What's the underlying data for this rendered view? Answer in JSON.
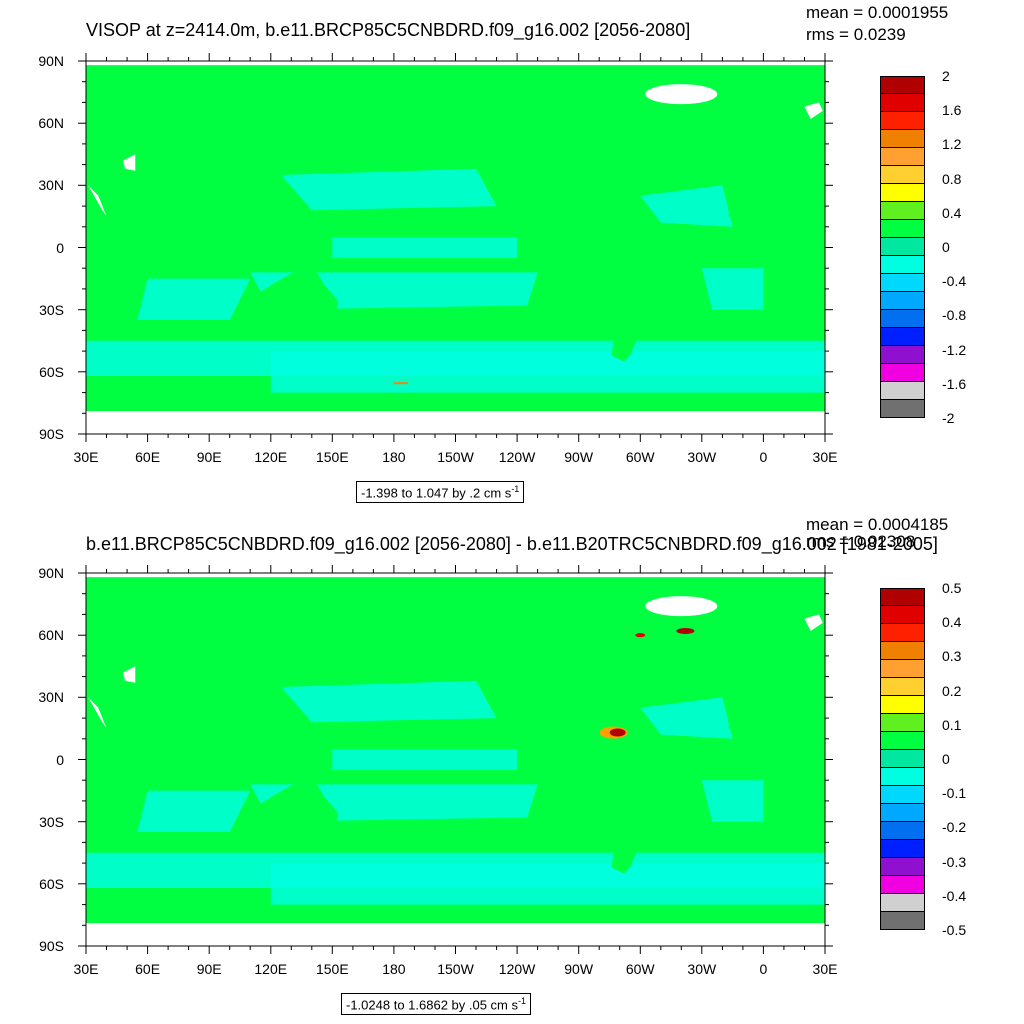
{
  "chart_data": [
    {
      "type": "heatmap",
      "title": "VISOP at z=2414.0m, b.e11.BRCP85C5CNBDRD.f09_g16.002 [2056-2080]",
      "stats": {
        "mean": "mean = 0.0001955",
        "rms": "rms = 0.0239"
      },
      "x_ticks": [
        "30E",
        "60E",
        "90E",
        "120E",
        "150E",
        "180",
        "150W",
        "120W",
        "90W",
        "60W",
        "30W",
        "0",
        "30E"
      ],
      "y_ticks": [
        "90N",
        "60N",
        "30N",
        "0",
        "30S",
        "60S",
        "90S"
      ],
      "range_text": "-1.398 to 1.047 by .2 cm s",
      "range_unit_exp": "-1",
      "colorbar_labels": [
        "2",
        "1.6",
        "1.2",
        "0.8",
        "0.4",
        "0",
        "-0.4",
        "-0.8",
        "-1.2",
        "-1.6",
        "-2"
      ],
      "colorbar_levels": [
        2,
        1.6,
        1.2,
        0.8,
        0.4,
        0,
        -0.4,
        -0.8,
        -1.2,
        -1.6,
        -2
      ],
      "colorbar_colors": [
        "#b00000",
        "#e00000",
        "#ff2000",
        "#f08000",
        "#ffa030",
        "#ffd030",
        "#ffff00",
        "#60f020",
        "#00ff40",
        "#00e8a0",
        "#00ffe0",
        "#00d8ff",
        "#00a8ff",
        "#0070f0",
        "#0020ff",
        "#9010d0",
        "#f000e0",
        "#d0d0d0",
        "#707070"
      ],
      "field": {
        "min": -1.398,
        "max": 1.047,
        "interval": 0.2,
        "units": "cm s-1",
        "dominant_color": "#00ff40",
        "secondary_color": "#00ffe0"
      }
    },
    {
      "type": "heatmap",
      "title": "b.e11.BRCP85C5CNBDRD.f09_g16.002 [2056-2080] - b.e11.B20TRC5CNBDRD.f09_g16.002 [1981-2005]",
      "stats": {
        "mean": "mean = 0.0004185",
        "rms": "rms = 0.02308"
      },
      "x_ticks": [
        "30E",
        "60E",
        "90E",
        "120E",
        "150E",
        "180",
        "150W",
        "120W",
        "90W",
        "60W",
        "30W",
        "0",
        "30E"
      ],
      "y_ticks": [
        "90N",
        "60N",
        "30N",
        "0",
        "30S",
        "60S",
        "90S"
      ],
      "range_text": "-1.0248 to 1.6862 by .05 cm s",
      "range_unit_exp": "-1",
      "colorbar_labels": [
        "0.5",
        "0.4",
        "0.3",
        "0.2",
        "0.1",
        "0",
        "-0.1",
        "-0.2",
        "-0.3",
        "-0.4",
        "-0.5"
      ],
      "colorbar_levels": [
        0.5,
        0.4,
        0.3,
        0.2,
        0.1,
        0,
        -0.1,
        -0.2,
        -0.3,
        -0.4,
        -0.5
      ],
      "colorbar_colors": [
        "#b00000",
        "#e00000",
        "#ff2000",
        "#f08000",
        "#ffa030",
        "#ffd030",
        "#ffff00",
        "#60f020",
        "#00ff40",
        "#00e8a0",
        "#00ffe0",
        "#00d8ff",
        "#00a8ff",
        "#0070f0",
        "#0020ff",
        "#9010d0",
        "#f000e0",
        "#d0d0d0",
        "#707070"
      ],
      "field": {
        "min": -1.0248,
        "max": 1.6862,
        "interval": 0.05,
        "units": "cm s-1",
        "dominant_color": "#00ff40",
        "secondary_color": "#00ffe0"
      }
    }
  ]
}
